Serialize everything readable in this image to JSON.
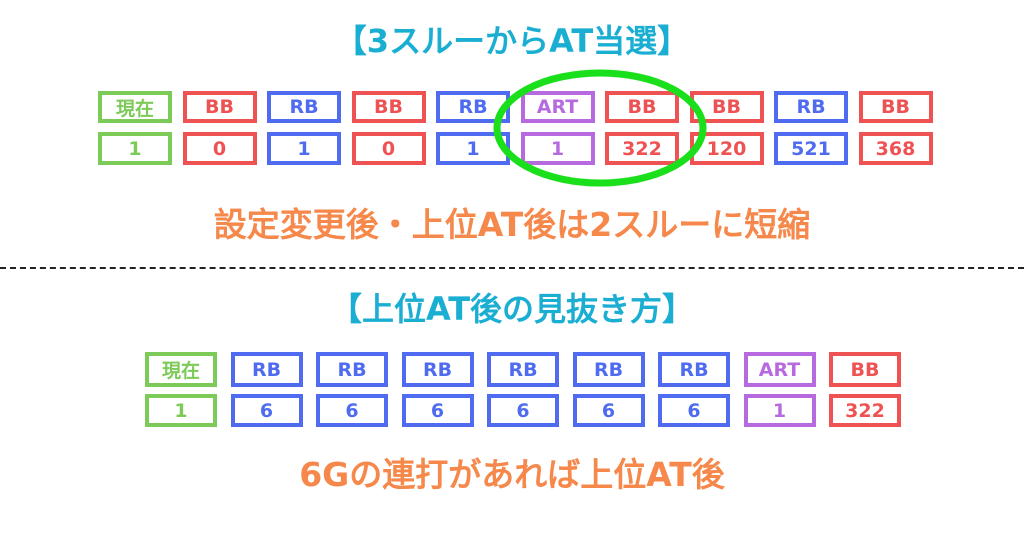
{
  "section1": {
    "title": "【3スルーからAT当選】",
    "labels": [
      "現在",
      "BB",
      "RB",
      "BB",
      "RB",
      "ART",
      "BB",
      "BB",
      "RB",
      "BB"
    ],
    "values": [
      "1",
      "0",
      "1",
      "0",
      "1",
      "1",
      "322",
      "120",
      "521",
      "368"
    ],
    "note": "設定変更後・上位AT後は2スルーに短縮"
  },
  "section2": {
    "title": "【上位AT後の見抜き方】",
    "labels": [
      "現在",
      "RB",
      "RB",
      "RB",
      "RB",
      "RB",
      "RB",
      "ART",
      "BB"
    ],
    "values": [
      "1",
      "6",
      "6",
      "6",
      "6",
      "6",
      "6",
      "1",
      "322"
    ],
    "note": "6Gの連打があれば上位AT後"
  },
  "colors": {
    "現在": "#7ccb58",
    "BB": "#ee5253",
    "RB": "#4f6cf0",
    "ART": "#b76ae0",
    "highlight": "#19e01a"
  }
}
